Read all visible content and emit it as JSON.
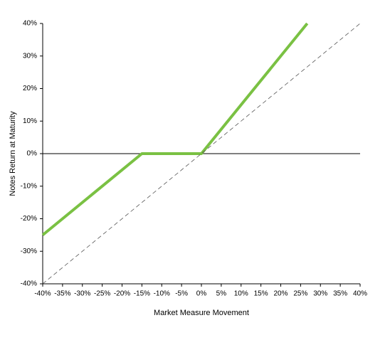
{
  "chart_data": {
    "type": "line",
    "x_label": "Market Measure Movement",
    "y_label": "Notes Return at Maturity",
    "series": [
      {
        "color": "#7ac143",
        "style": "solid",
        "x": [
          -40,
          -15,
          0,
          26.67
        ],
        "values": [
          -25,
          0,
          0,
          40
        ]
      },
      {
        "color": "#555555",
        "style": "dashed",
        "x": [
          -40,
          40
        ],
        "values": [
          -40,
          40
        ]
      }
    ],
    "xlim": [
      -40,
      40
    ],
    "xticks": [
      {
        "value": -40,
        "label": "-40%"
      },
      {
        "value": -35,
        "label": "-35%"
      },
      {
        "value": -30,
        "label": "-30%"
      },
      {
        "value": -25,
        "label": "-25%"
      },
      {
        "value": -20,
        "label": "-20%"
      },
      {
        "value": -15,
        "label": "-15%"
      },
      {
        "value": -10,
        "label": "-10%"
      },
      {
        "value": -5,
        "label": "-5%"
      },
      {
        "value": 0,
        "label": "0%"
      },
      {
        "value": 5,
        "label": "5%"
      },
      {
        "value": 10,
        "label": "10%"
      },
      {
        "value": 15,
        "label": "15%"
      },
      {
        "value": 20,
        "label": "20%"
      },
      {
        "value": 25,
        "label": "25%"
      },
      {
        "value": 30,
        "label": "30%"
      },
      {
        "value": 35,
        "label": "35%"
      },
      {
        "value": 40,
        "label": "40%"
      }
    ],
    "ylim": [
      -40,
      40
    ],
    "yticks": [
      {
        "value": -40,
        "label": "-40%"
      },
      {
        "value": -30,
        "label": "-30%"
      },
      {
        "value": -20,
        "label": "-20%"
      },
      {
        "value": -10,
        "label": "-10%"
      },
      {
        "value": 0,
        "label": "0%"
      },
      {
        "value": 10,
        "label": "10%"
      },
      {
        "value": 20,
        "label": "20%"
      },
      {
        "value": 30,
        "label": "30%"
      },
      {
        "value": 40,
        "label": "40%"
      }
    ],
    "grid": false
  }
}
